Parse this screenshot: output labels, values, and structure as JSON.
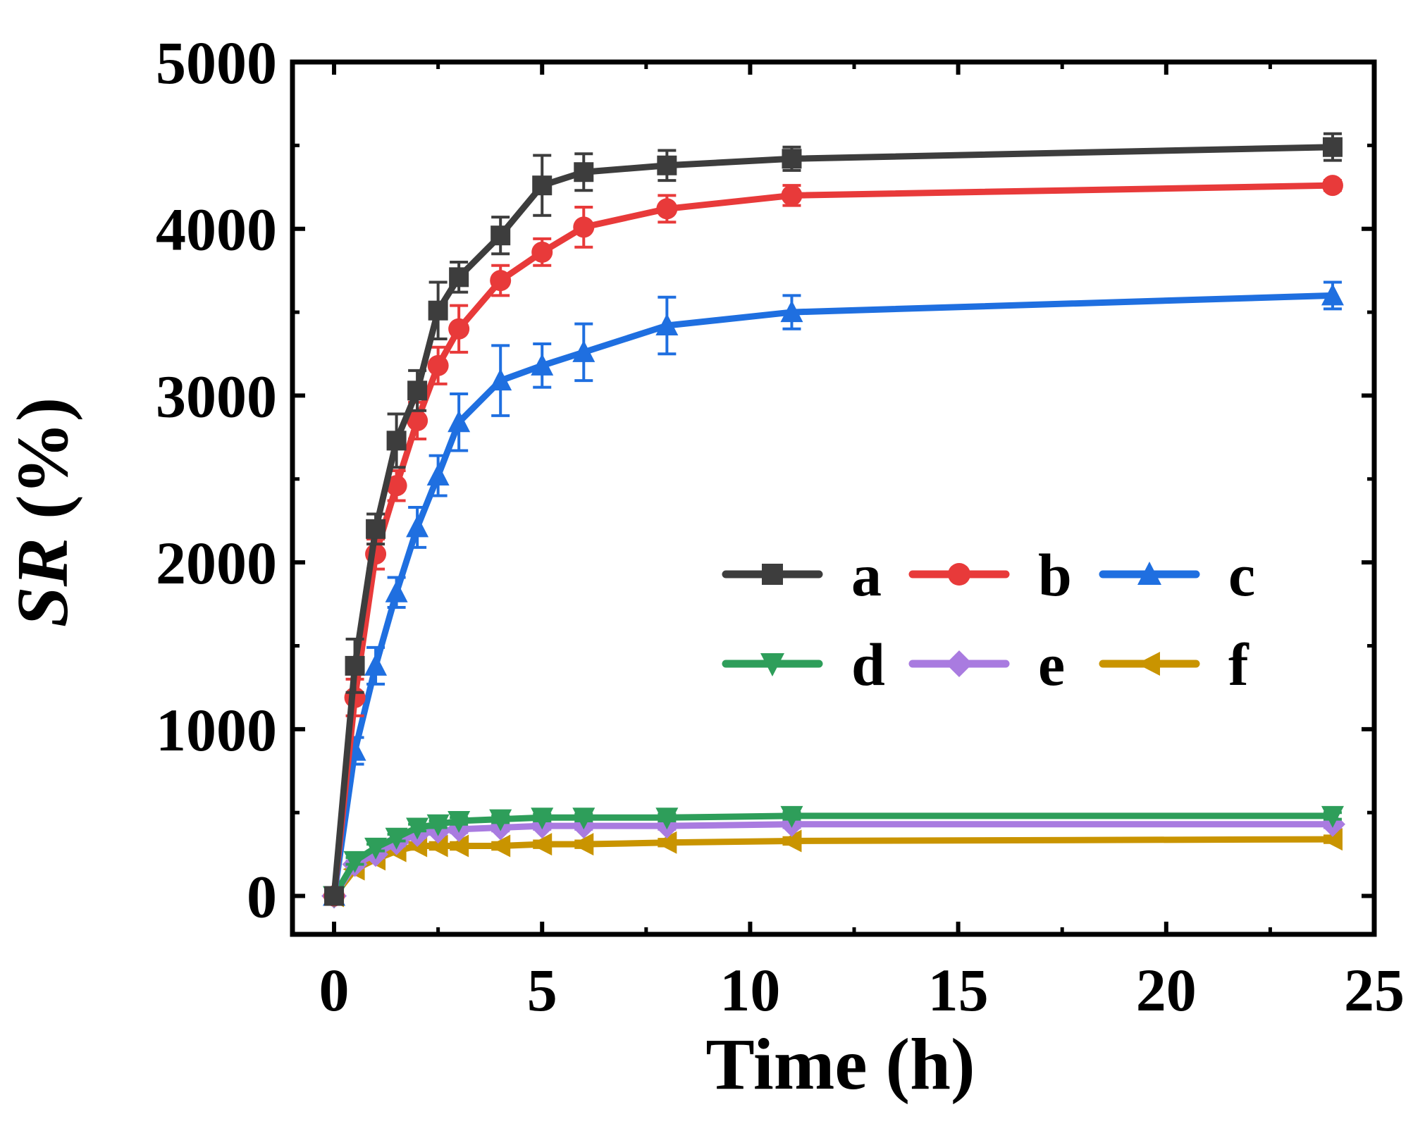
{
  "chart_data": {
    "type": "line",
    "xlabel": "Time (h)",
    "ylabel_italic": "SR",
    "ylabel_rest": " (%)",
    "xlim": [
      -1,
      25
    ],
    "ylim": [
      -230,
      5000
    ],
    "xticks": [
      0,
      5,
      10,
      15,
      20,
      25
    ],
    "yticks": [
      0,
      1000,
      2000,
      3000,
      4000,
      5000
    ],
    "x": [
      0,
      0.5,
      1,
      1.5,
      2,
      2.5,
      3,
      4,
      5,
      6,
      8,
      11,
      24
    ],
    "series": [
      {
        "name": "a",
        "color": "#3d3d3d",
        "marker": "square",
        "values": [
          0,
          1380,
          2200,
          2730,
          3030,
          3510,
          3710,
          3960,
          4260,
          4340,
          4380,
          4420,
          4490
        ],
        "errors": [
          0,
          160,
          90,
          160,
          120,
          170,
          90,
          110,
          180,
          110,
          90,
          70,
          80
        ]
      },
      {
        "name": "b",
        "color": "#e83a3a",
        "marker": "circle",
        "values": [
          0,
          1190,
          2050,
          2460,
          2850,
          3180,
          3400,
          3690,
          3860,
          4010,
          4120,
          4200,
          4260
        ],
        "errors": [
          0,
          110,
          90,
          90,
          110,
          110,
          140,
          90,
          80,
          120,
          80,
          60,
          30
        ]
      },
      {
        "name": "c",
        "color": "#1f6fe0",
        "marker": "triangle-up",
        "values": [
          0,
          870,
          1380,
          1820,
          2210,
          2520,
          2840,
          3090,
          3180,
          3260,
          3420,
          3500,
          3600
        ],
        "errors": [
          0,
          80,
          110,
          90,
          120,
          120,
          170,
          210,
          130,
          170,
          170,
          100,
          80
        ]
      },
      {
        "name": "d",
        "color": "#2e9e5a",
        "marker": "triangle-down",
        "values": [
          0,
          210,
          290,
          350,
          410,
          430,
          450,
          460,
          470,
          470,
          470,
          480,
          480
        ],
        "errors": [
          0,
          20,
          20,
          20,
          20,
          20,
          20,
          20,
          20,
          20,
          20,
          20,
          20
        ]
      },
      {
        "name": "e",
        "color": "#a97be0",
        "marker": "diamond",
        "values": [
          0,
          190,
          250,
          320,
          370,
          390,
          400,
          410,
          420,
          420,
          420,
          430,
          430
        ],
        "errors": [
          0,
          20,
          20,
          20,
          20,
          20,
          20,
          20,
          20,
          20,
          20,
          20,
          20
        ]
      },
      {
        "name": "f",
        "color": "#c99400",
        "marker": "triangle-left",
        "values": [
          0,
          160,
          220,
          270,
          300,
          300,
          300,
          300,
          310,
          310,
          320,
          330,
          340
        ],
        "errors": [
          0,
          20,
          20,
          20,
          20,
          20,
          20,
          20,
          20,
          20,
          20,
          20,
          20
        ]
      }
    ],
    "legend": {
      "position": "center-right",
      "columns": 3
    }
  }
}
